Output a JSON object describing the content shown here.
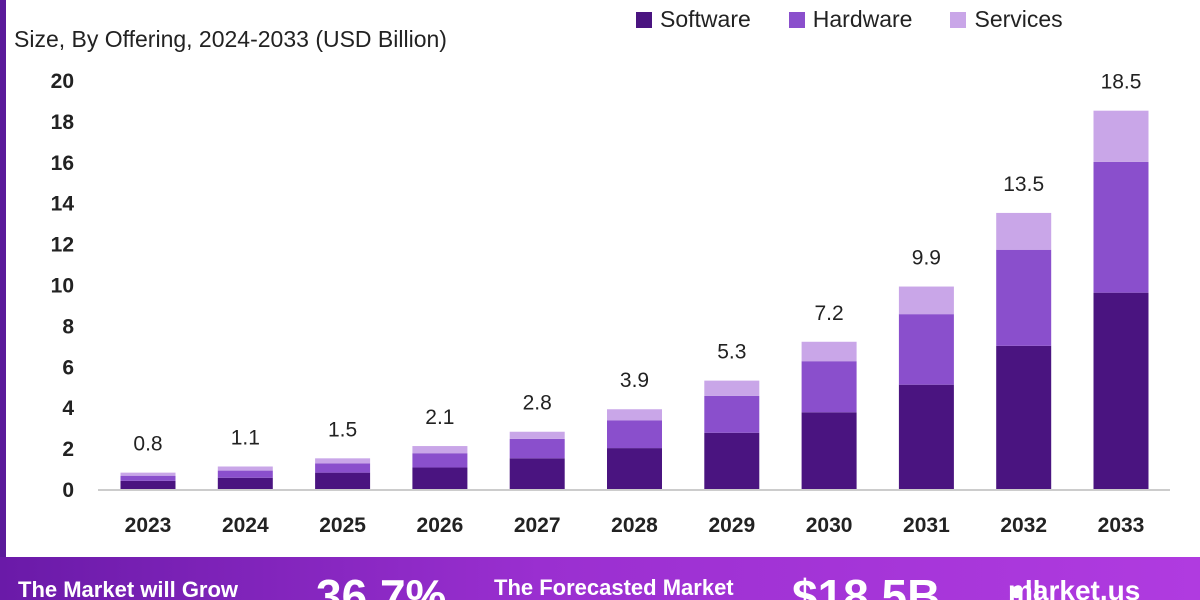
{
  "chart_data": {
    "type": "stacked-bar",
    "subtitle": "Size, By Offering, 2024-2033 (USD Billion)",
    "categories": [
      "2023",
      "2024",
      "2025",
      "2026",
      "2027",
      "2028",
      "2029",
      "2030",
      "2031",
      "2032",
      "2033"
    ],
    "series": [
      {
        "name": "Software",
        "color": "#4a1480",
        "values": [
          0.4,
          0.55,
          0.8,
          1.05,
          1.5,
          2.0,
          2.75,
          3.75,
          5.1,
          7.0,
          9.6
        ]
      },
      {
        "name": "Hardware",
        "color": "#8a4fcc",
        "values": [
          0.25,
          0.35,
          0.45,
          0.7,
          0.95,
          1.35,
          1.8,
          2.5,
          3.45,
          4.7,
          6.4
        ]
      },
      {
        "name": "Services",
        "color": "#c9a6e8",
        "values": [
          0.15,
          0.2,
          0.25,
          0.35,
          0.35,
          0.55,
          0.75,
          0.95,
          1.35,
          1.8,
          2.5
        ]
      }
    ],
    "totals": [
      "0.8",
      "1.1",
      "1.5",
      "2.1",
      "2.8",
      "3.9",
      "5.3",
      "7.2",
      "9.9",
      "13.5",
      "18.5"
    ],
    "yticks": [
      0,
      2,
      4,
      6,
      8,
      10,
      12,
      14,
      16,
      18,
      20
    ],
    "ylim": [
      0,
      20
    ]
  },
  "footer": {
    "grow_label": "The Market will Grow",
    "cagr": "36.7%",
    "forecast_label": "The Forecasted Market",
    "forecast_value": "$18.5B",
    "brand": "market.us"
  }
}
